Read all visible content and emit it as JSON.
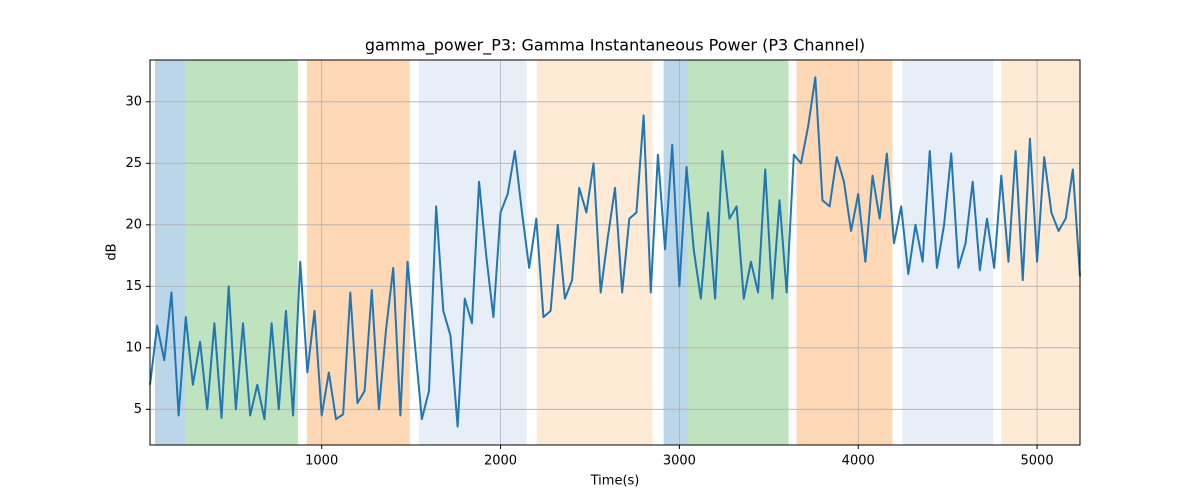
{
  "chart_data": {
    "type": "line",
    "title": "gamma_power_P3: Gamma Instantaneous Power (P3 Channel)",
    "x_label": "Time(s)",
    "y_label": "dB",
    "xlim": [
      40,
      5240
    ],
    "ylim": [
      2.1,
      33.4
    ],
    "xticks": [
      1000,
      2000,
      3000,
      4000,
      5000
    ],
    "yticks": [
      5,
      10,
      15,
      20,
      25,
      30
    ],
    "grid": true,
    "spans": [
      {
        "start": 68,
        "end": 236,
        "color": "#1f77b44d"
      },
      {
        "start": 236,
        "end": 867,
        "color": "#2ca02c4d"
      },
      {
        "start": 917,
        "end": 1493,
        "color": "#ff7f0e4d"
      },
      {
        "start": 1543,
        "end": 2146,
        "color": "#aec7e84d"
      },
      {
        "start": 2202,
        "end": 2850,
        "color": "#ffbb784d"
      },
      {
        "start": 2912,
        "end": 3046,
        "color": "#1f77b44d"
      },
      {
        "start": 3046,
        "end": 3610,
        "color": "#2ca02c4d"
      },
      {
        "start": 3655,
        "end": 4191,
        "color": "#ff7f0e4d"
      },
      {
        "start": 4247,
        "end": 4755,
        "color": "#aec7e84d"
      },
      {
        "start": 4800,
        "end": 5240,
        "color": "#ffbb784d"
      }
    ],
    "x": [
      40,
      80,
      120,
      160,
      200,
      240,
      280,
      320,
      360,
      400,
      440,
      480,
      520,
      560,
      600,
      640,
      680,
      720,
      760,
      800,
      840,
      880,
      920,
      960,
      1000,
      1040,
      1080,
      1120,
      1160,
      1200,
      1240,
      1280,
      1320,
      1360,
      1400,
      1440,
      1480,
      1520,
      1560,
      1600,
      1640,
      1680,
      1720,
      1760,
      1800,
      1840,
      1880,
      1920,
      1960,
      2000,
      2040,
      2080,
      2120,
      2160,
      2200,
      2240,
      2280,
      2320,
      2360,
      2400,
      2440,
      2480,
      2520,
      2560,
      2600,
      2640,
      2680,
      2720,
      2760,
      2800,
      2840,
      2880,
      2920,
      2960,
      3000,
      3040,
      3080,
      3120,
      3160,
      3200,
      3240,
      3280,
      3320,
      3360,
      3400,
      3440,
      3480,
      3520,
      3560,
      3600,
      3640,
      3680,
      3720,
      3760,
      3800,
      3840,
      3880,
      3920,
      3960,
      4000,
      4040,
      4080,
      4120,
      4160,
      4200,
      4240,
      4280,
      4320,
      4360,
      4400,
      4440,
      4480,
      4520,
      4560,
      4600,
      4640,
      4680,
      4720,
      4760,
      4800,
      4840,
      4880,
      4920,
      4960,
      5000,
      5040,
      5080,
      5120,
      5160,
      5200,
      5240
    ],
    "series": [
      {
        "color": "#1f77b4",
        "values": [
          7,
          11.8,
          9,
          14.5,
          4.5,
          12.5,
          7,
          10.5,
          5,
          12,
          4.3,
          15,
          5,
          12,
          4.5,
          7,
          4.2,
          12,
          5,
          13,
          4.5,
          17,
          8,
          13,
          4.5,
          8,
          4.2,
          4.6,
          14.5,
          5.5,
          6.5,
          14.7,
          5,
          11.5,
          16.5,
          4.5,
          17,
          10.5,
          4.2,
          6.5,
          21.5,
          13,
          11,
          3.6,
          14,
          12,
          23.5,
          17.5,
          12.5,
          21,
          22.5,
          26,
          21,
          16.5,
          20.5,
          12.5,
          13,
          20,
          14,
          15.5,
          23,
          21,
          25,
          14.5,
          19,
          23,
          14.5,
          20.5,
          21,
          28.9,
          14.5,
          25.7,
          18,
          26.5,
          15,
          24.7,
          18,
          14,
          21,
          14,
          26,
          20.5,
          21.5,
          14,
          17,
          14.5,
          24.5,
          14,
          22,
          14.5,
          25.7,
          25,
          28,
          32,
          22,
          21.5,
          25.5,
          23.5,
          19.5,
          22.5,
          17,
          24,
          20.5,
          25.8,
          18.5,
          21.5,
          16,
          20,
          17,
          26,
          16.5,
          20,
          25.8,
          16.5,
          18.5,
          23.5,
          16.3,
          20.5,
          16.5,
          24,
          17,
          26,
          15.5,
          27,
          17,
          25.5,
          21,
          19.5,
          20.5,
          24.5,
          15.8
        ]
      }
    ]
  }
}
